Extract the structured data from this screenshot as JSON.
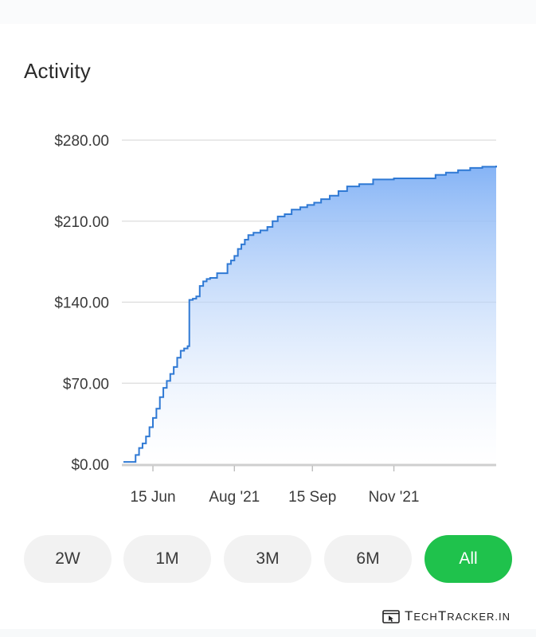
{
  "header": {
    "title": "Activity"
  },
  "chart_data": {
    "type": "area",
    "title": "",
    "xlabel": "",
    "ylabel": "",
    "x_ticks": [
      "15 Jun",
      "Aug '21",
      "15 Sep",
      "Nov '21"
    ],
    "x_tick_positions": [
      "2021-06-15",
      "2021-08-01",
      "2021-09-15",
      "2021-11-01"
    ],
    "y_ticks": [
      "$0.00",
      "$70.00",
      "$140.00",
      "$210.00",
      "$280.00"
    ],
    "ylim": [
      0,
      280
    ],
    "xlim": [
      "2021-05-29",
      "2021-12-30"
    ],
    "grid": true,
    "line_color": "#2f79d4",
    "fill_top_color": "#7eaff5",
    "fill_bottom_color": "#ffffff",
    "series": [
      {
        "x": [
          "2021-05-29",
          "2021-06-03",
          "2021-06-05",
          "2021-06-07",
          "2021-06-09",
          "2021-06-11",
          "2021-06-13",
          "2021-06-15",
          "2021-06-17",
          "2021-06-19",
          "2021-06-21",
          "2021-06-23",
          "2021-06-25",
          "2021-06-27",
          "2021-06-29",
          "2021-07-01",
          "2021-07-03",
          "2021-07-05",
          "2021-07-06",
          "2021-07-08",
          "2021-07-10",
          "2021-07-12",
          "2021-07-14",
          "2021-07-16",
          "2021-07-18",
          "2021-07-22",
          "2021-07-28",
          "2021-07-30",
          "2021-08-01",
          "2021-08-03",
          "2021-08-05",
          "2021-08-07",
          "2021-08-09",
          "2021-08-12",
          "2021-08-16",
          "2021-08-20",
          "2021-08-23",
          "2021-08-26",
          "2021-08-30",
          "2021-09-03",
          "2021-09-08",
          "2021-09-12",
          "2021-09-16",
          "2021-09-20",
          "2021-09-25",
          "2021-09-30",
          "2021-10-05",
          "2021-10-12",
          "2021-10-20",
          "2021-11-01",
          "2021-11-08",
          "2021-11-12",
          "2021-11-18",
          "2021-11-25",
          "2021-12-01",
          "2021-12-08",
          "2021-12-15",
          "2021-12-22",
          "2021-12-30"
        ],
        "values": [
          2,
          2,
          8,
          14,
          18,
          24,
          32,
          40,
          48,
          58,
          66,
          72,
          78,
          84,
          92,
          98,
          100,
          102,
          142,
          143,
          145,
          154,
          158,
          160,
          161,
          165,
          173,
          176,
          180,
          186,
          190,
          194,
          198,
          200,
          202,
          205,
          210,
          214,
          216,
          220,
          222,
          224,
          226,
          229,
          232,
          236,
          240,
          242,
          246,
          247,
          247,
          247,
          247,
          250,
          252,
          254,
          256,
          257,
          258
        ]
      }
    ]
  },
  "range_selector": {
    "selected": "All",
    "active_color": "#1fc24c",
    "buttons": [
      {
        "label": "2W"
      },
      {
        "label": "1M"
      },
      {
        "label": "3M"
      },
      {
        "label": "6M"
      },
      {
        "label": "All"
      }
    ]
  },
  "watermark": {
    "logo_big_t": "T",
    "logo_small_1": "ECH",
    "logo_big_t2": "T",
    "logo_small_2": "RACKER.IN",
    "icon": "browser-cursor-icon"
  }
}
